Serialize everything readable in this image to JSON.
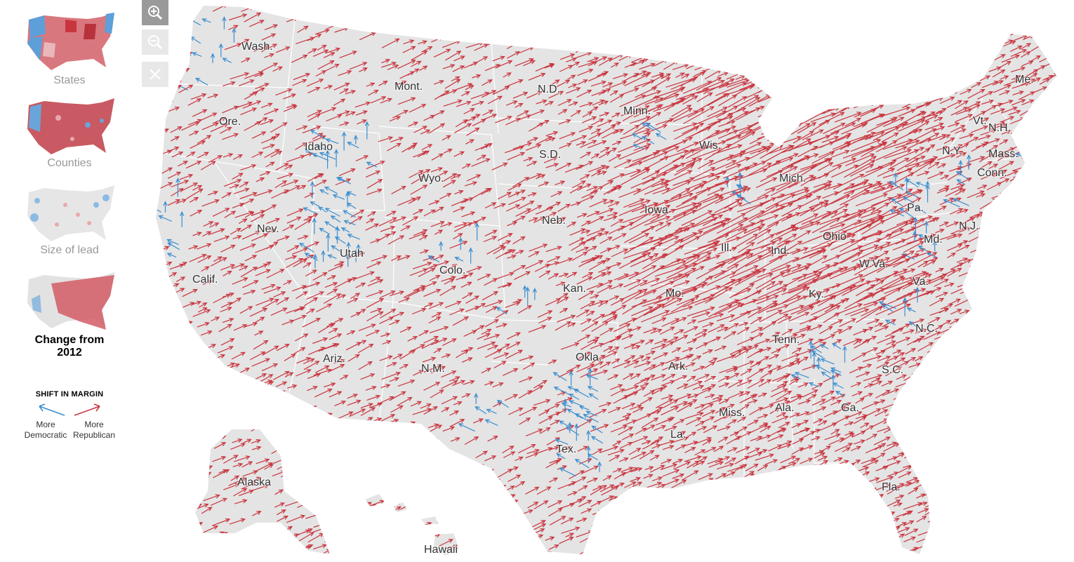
{
  "sidebar": {
    "views": [
      {
        "label": "States",
        "active": false,
        "thumb": "states"
      },
      {
        "label": "Counties",
        "active": false,
        "thumb": "counties"
      },
      {
        "label": "Size of lead",
        "active": false,
        "thumb": "lead"
      },
      {
        "label": "Change from 2012",
        "active": true,
        "thumb": "change"
      }
    ],
    "legend": {
      "title": "SHIFT IN MARGIN",
      "dem_label": "More Democratic",
      "rep_label": "More Republican"
    }
  },
  "controls": {
    "zoom_in_icon": "zoom-in-icon",
    "zoom_out_icon": "zoom-out-icon",
    "reset_icon": "close-icon"
  },
  "colors": {
    "republican": "#c9353f",
    "democratic": "#3b8ecf",
    "land": "#e4e4e4",
    "border": "#ffffff"
  },
  "map": {
    "states": [
      "Wash.",
      "Ore.",
      "Calif.",
      "Idaho",
      "Nev.",
      "Mont.",
      "Wyo.",
      "Utah",
      "Ariz.",
      "Colo.",
      "N.M.",
      "N.D.",
      "S.D.",
      "Neb.",
      "Kan.",
      "Okla.",
      "Tex.",
      "Minn.",
      "Iowa",
      "Mo.",
      "Ark.",
      "La.",
      "Wis.",
      "Ill.",
      "Mich.",
      "Ind.",
      "Ohio",
      "Ky.",
      "Tenn.",
      "Miss.",
      "Ala.",
      "Ga.",
      "Fla.",
      "S.C.",
      "N.C.",
      "Va.",
      "W.Va.",
      "Md.",
      "Pa.",
      "N.J.",
      "N.Y.",
      "Conn.",
      "Mass.",
      "Vt.",
      "N.H.",
      "Me.",
      "Alaska",
      "Hawaii"
    ]
  }
}
